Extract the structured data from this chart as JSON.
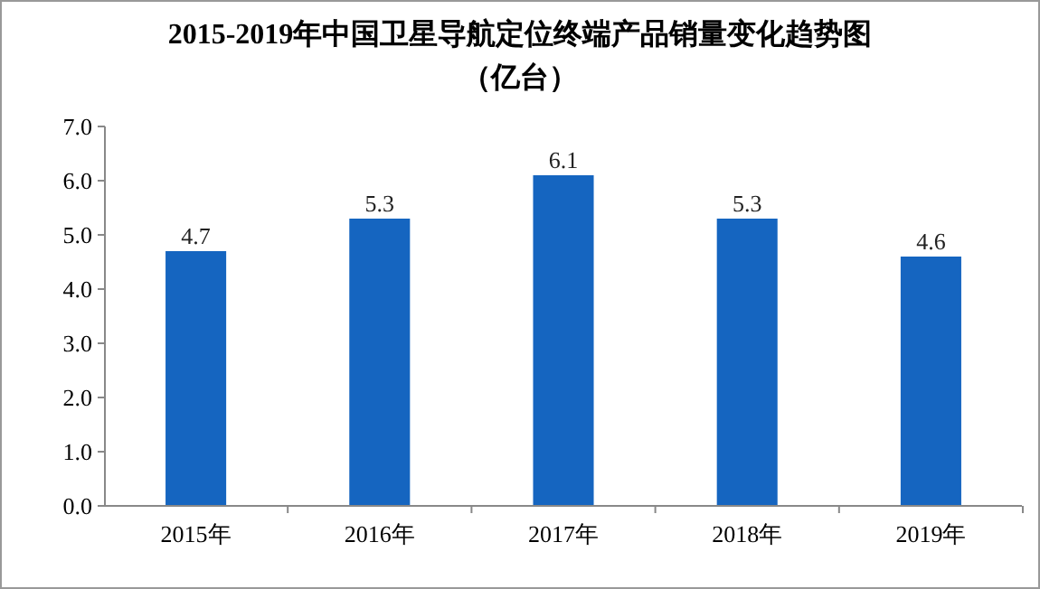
{
  "chart_data": {
    "type": "bar",
    "title": "2015-2019年中国卫星导航定位终端产品销量变化趋势图",
    "subtitle": "（亿台）",
    "categories": [
      "2015年",
      "2016年",
      "2017年",
      "2018年",
      "2019年"
    ],
    "values": [
      4.7,
      5.3,
      6.1,
      5.3,
      4.6
    ],
    "color": "#1565c0",
    "ylim": [
      0,
      7
    ],
    "yticks": [
      {
        "value": 0,
        "label": "0.0"
      },
      {
        "value": 1,
        "label": "1.0"
      },
      {
        "value": 2,
        "label": "2.0"
      },
      {
        "value": 3,
        "label": "3.0"
      },
      {
        "value": 4,
        "label": "4.0"
      },
      {
        "value": 5,
        "label": "5.0"
      },
      {
        "value": 6,
        "label": "6.0"
      },
      {
        "value": 7,
        "label": "7.0"
      }
    ],
    "data_labels": true
  }
}
